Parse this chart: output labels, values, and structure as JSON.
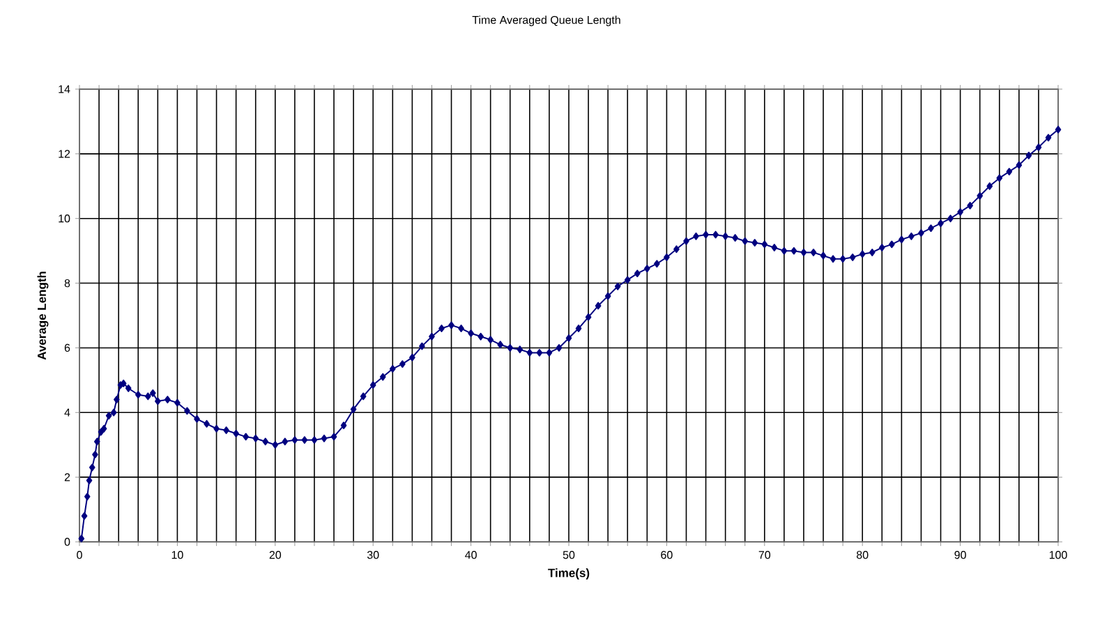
{
  "chart_data": {
    "type": "line",
    "title": "Time Averaged Queue Length",
    "xlabel": "Time(s)",
    "ylabel": "Average Length",
    "xlim": [
      0,
      100
    ],
    "ylim": [
      0,
      14
    ],
    "xticks": [
      0,
      {
        "value": 2,
        "label": null
      },
      {
        "value": 4,
        "label": null
      },
      {
        "value": 6,
        "label": null
      },
      {
        "value": 8,
        "label": null
      },
      10,
      {
        "value": 12,
        "label": null
      },
      {
        "value": 14,
        "label": null
      },
      {
        "value": 16,
        "label": null
      },
      {
        "value": 18,
        "label": null
      },
      20,
      {
        "value": 22,
        "label": null
      },
      {
        "value": 24,
        "label": null
      },
      {
        "value": 26,
        "label": null
      },
      {
        "value": 28,
        "label": null
      },
      30,
      {
        "value": 32,
        "label": null
      },
      {
        "value": 34,
        "label": null
      },
      {
        "value": 36,
        "label": null
      },
      {
        "value": 38,
        "label": null
      },
      40,
      {
        "value": 42,
        "label": null
      },
      {
        "value": 44,
        "label": null
      },
      {
        "value": 46,
        "label": null
      },
      {
        "value": 48,
        "label": null
      },
      50,
      {
        "value": 52,
        "label": null
      },
      {
        "value": 54,
        "label": null
      },
      {
        "value": 56,
        "label": null
      },
      {
        "value": 58,
        "label": null
      },
      60,
      {
        "value": 62,
        "label": null
      },
      {
        "value": 64,
        "label": null
      },
      {
        "value": 66,
        "label": null
      },
      {
        "value": 68,
        "label": null
      },
      70,
      {
        "value": 72,
        "label": null
      },
      {
        "value": 74,
        "label": null
      },
      {
        "value": 76,
        "label": null
      },
      {
        "value": 78,
        "label": null
      },
      80,
      {
        "value": 82,
        "label": null
      },
      {
        "value": 84,
        "label": null
      },
      {
        "value": 86,
        "label": null
      },
      {
        "value": 88,
        "label": null
      },
      90,
      {
        "value": 92,
        "label": null
      },
      {
        "value": 94,
        "label": null
      },
      {
        "value": 96,
        "label": null
      },
      {
        "value": 98,
        "label": null
      },
      100
    ],
    "yticks": [
      0,
      2,
      4,
      6,
      8,
      10,
      12,
      14
    ],
    "grid": true,
    "marker": "diamond",
    "line_style": "solid",
    "series": [
      {
        "color": "#000080",
        "x": [
          0.2,
          0.5,
          0.8,
          1.0,
          1.3,
          1.6,
          1.8,
          2.2,
          2.5,
          3,
          3.5,
          3.8,
          4.2,
          4.5,
          5,
          6,
          7,
          7.5,
          8,
          9,
          10,
          11,
          12,
          13,
          14,
          15,
          16,
          17,
          18,
          19,
          20,
          21,
          22,
          23,
          24,
          25,
          26,
          27,
          28,
          29,
          30,
          31,
          32,
          33,
          34,
          35,
          36,
          37,
          38,
          39,
          40,
          41,
          42,
          43,
          44,
          45,
          46,
          47,
          48,
          49,
          50,
          51,
          52,
          53,
          54,
          55,
          56,
          57,
          58,
          59,
          60,
          61,
          62,
          63,
          64,
          65,
          66,
          67,
          68,
          69,
          70,
          71,
          72,
          73,
          74,
          75,
          76,
          77,
          78,
          79,
          80,
          81,
          82,
          83,
          84,
          85,
          86,
          87,
          88,
          89,
          90,
          91,
          92,
          93,
          94,
          95,
          96,
          97,
          98,
          99,
          100
        ],
        "values": [
          0.1,
          0.8,
          1.4,
          1.9,
          2.3,
          2.7,
          3.1,
          3.4,
          3.5,
          3.9,
          4.0,
          4.4,
          4.85,
          4.9,
          4.75,
          4.55,
          4.5,
          4.6,
          4.35,
          4.4,
          4.3,
          4.05,
          3.8,
          3.65,
          3.5,
          3.45,
          3.35,
          3.25,
          3.2,
          3.1,
          3.0,
          3.1,
          3.15,
          3.15,
          3.15,
          3.2,
          3.25,
          3.6,
          4.1,
          4.5,
          4.85,
          5.1,
          5.35,
          5.5,
          5.7,
          6.05,
          6.35,
          6.6,
          6.7,
          6.6,
          6.45,
          6.35,
          6.25,
          6.1,
          6.0,
          5.95,
          5.85,
          5.85,
          5.85,
          6.0,
          6.3,
          6.6,
          6.95,
          7.3,
          7.6,
          7.9,
          8.1,
          8.3,
          8.45,
          8.6,
          8.8,
          9.05,
          9.3,
          9.45,
          9.5,
          9.5,
          9.45,
          9.4,
          9.3,
          9.25,
          9.2,
          9.1,
          9.0,
          9.0,
          8.95,
          8.95,
          8.85,
          8.75,
          8.75,
          8.8,
          8.9,
          8.95,
          9.1,
          9.2,
          9.35,
          9.45,
          9.55,
          9.7,
          9.85,
          10.0,
          10.2,
          10.4,
          10.7,
          11.0,
          11.25,
          11.45,
          11.65,
          11.95,
          12.2,
          12.5,
          12.75
        ]
      }
    ]
  }
}
